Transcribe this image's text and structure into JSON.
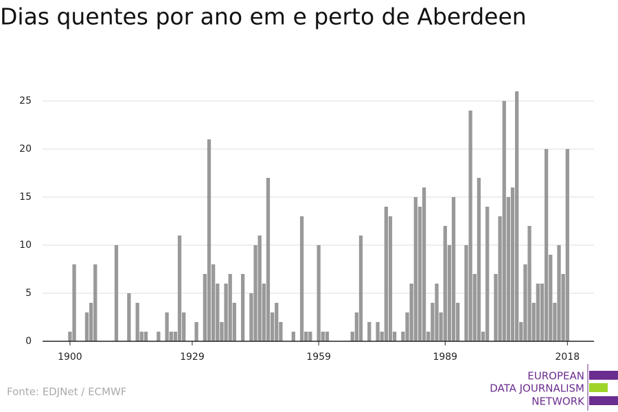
{
  "chart_data": {
    "type": "bar",
    "title": "Dias quentes por ano em e perto de Aberdeen",
    "source": "Fonte: EDJNet / ECMWF",
    "logo": [
      "EUROPEAN",
      "DATA JOURNALISM",
      "NETWORK"
    ],
    "color": "#999999",
    "x": [
      1900,
      1901,
      1902,
      1903,
      1904,
      1905,
      1906,
      1907,
      1908,
      1909,
      1910,
      1911,
      1912,
      1913,
      1914,
      1915,
      1916,
      1917,
      1918,
      1919,
      1920,
      1921,
      1922,
      1923,
      1924,
      1925,
      1926,
      1927,
      1928,
      1929,
      1930,
      1931,
      1932,
      1933,
      1934,
      1935,
      1936,
      1937,
      1938,
      1939,
      1940,
      1941,
      1942,
      1943,
      1944,
      1945,
      1946,
      1947,
      1948,
      1949,
      1950,
      1951,
      1952,
      1953,
      1954,
      1955,
      1956,
      1957,
      1958,
      1959,
      1960,
      1961,
      1962,
      1963,
      1964,
      1965,
      1966,
      1967,
      1968,
      1969,
      1970,
      1971,
      1972,
      1973,
      1974,
      1975,
      1976,
      1977,
      1978,
      1979,
      1980,
      1981,
      1982,
      1983,
      1984,
      1985,
      1986,
      1987,
      1988,
      1989,
      1990,
      1991,
      1992,
      1993,
      1994,
      1995,
      1996,
      1997,
      1998,
      1999,
      2000,
      2001,
      2002,
      2003,
      2004,
      2005,
      2006,
      2007,
      2008,
      2009,
      2010,
      2011,
      2012,
      2013,
      2014,
      2015,
      2016,
      2017,
      2018
    ],
    "values": [
      1,
      8,
      0,
      0,
      3,
      4,
      8,
      0,
      0,
      0,
      0,
      10,
      0,
      0,
      5,
      0,
      4,
      1,
      1,
      0,
      0,
      1,
      0,
      3,
      1,
      1,
      11,
      3,
      0,
      0,
      2,
      0,
      7,
      21,
      8,
      6,
      2,
      6,
      7,
      4,
      0,
      7,
      0,
      5,
      10,
      11,
      6,
      17,
      3,
      4,
      2,
      0,
      0,
      1,
      0,
      13,
      1,
      1,
      0,
      10,
      1,
      1,
      0,
      0,
      0,
      0,
      0,
      1,
      3,
      11,
      0,
      2,
      0,
      2,
      1,
      14,
      13,
      1,
      0,
      1,
      3,
      6,
      15,
      14,
      16,
      1,
      4,
      6,
      3,
      12,
      10,
      15,
      4,
      0,
      10,
      24,
      7,
      17,
      1,
      14,
      0,
      7,
      13,
      25,
      15,
      16,
      26,
      2,
      8,
      12,
      4,
      6,
      6,
      20,
      9,
      4,
      10,
      7,
      20
    ],
    "xlim": [
      1893.5,
      2024.3
    ],
    "xticks": [
      1900,
      1929,
      1959,
      1989,
      2018
    ],
    "ylim": [
      0,
      26
    ],
    "yticks": [
      0,
      5,
      10,
      15,
      20,
      25
    ],
    "grid": true
  }
}
